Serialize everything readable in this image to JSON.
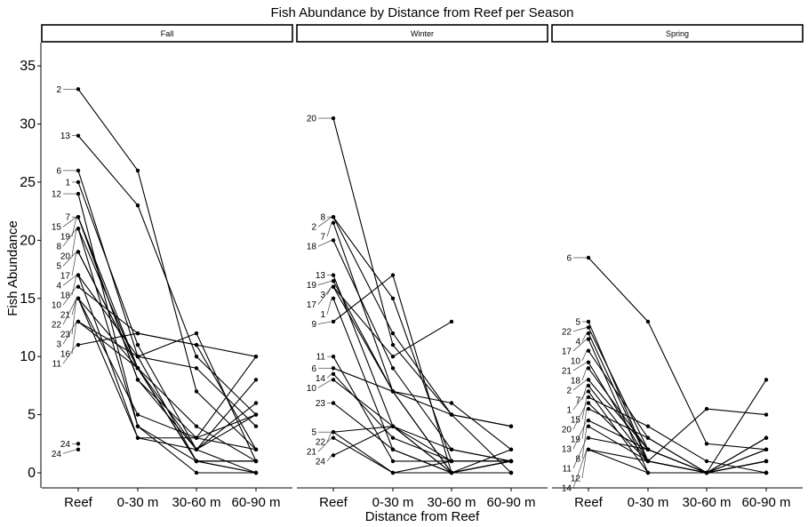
{
  "chart_data": {
    "type": "line",
    "title": "Fish Abundance by Distance from Reef per Season",
    "xlabel": "Distance from Reef",
    "ylabel": "Fish Abundance",
    "ylim": [
      -1.3,
      37
    ],
    "yticks": [
      0,
      5,
      10,
      15,
      20,
      25,
      30,
      35
    ],
    "categories": [
      "Reef",
      "0-30 m",
      "30-60 m",
      "60-90 m"
    ],
    "grid": false,
    "panels": [
      {
        "name": "Fall",
        "series": [
          {
            "name": "1",
            "values": [
              25,
              11,
              2,
              0
            ]
          },
          {
            "name": "2",
            "values": [
              33,
              26,
              7,
              2
            ]
          },
          {
            "name": "3",
            "values": [
              13,
              9,
              1,
              1
            ]
          },
          {
            "name": "4",
            "values": [
              17,
              10,
              12,
              1
            ]
          },
          {
            "name": "5",
            "values": [
              19,
              9,
              1,
              0
            ]
          },
          {
            "name": "6",
            "values": [
              26,
              10,
              1,
              0
            ]
          },
          {
            "name": "7",
            "values": [
              22,
              8,
              2,
              5
            ]
          },
          {
            "name": "8",
            "values": [
              21,
              4,
              0,
              0
            ]
          },
          {
            "name": "10",
            "values": [
              16,
              12,
              11,
              2
            ]
          },
          {
            "name": "11",
            "values": [
              11,
              12,
              11,
              10
            ]
          },
          {
            "name": "12",
            "values": [
              24,
              4,
              1,
              1
            ]
          },
          {
            "name": "13",
            "values": [
              29,
              23,
              10,
              5
            ]
          },
          {
            "name": "15",
            "values": [
              22,
              9,
              2,
              8
            ]
          },
          {
            "name": "16",
            "values": [
              13,
              10,
              9,
              4
            ]
          },
          {
            "name": "17",
            "values": [
              19,
              9,
              4,
              1
            ]
          },
          {
            "name": "18",
            "values": [
              17,
              3,
              2,
              6
            ]
          },
          {
            "name": "19",
            "values": [
              22,
              8,
              3,
              2
            ]
          },
          {
            "name": "20",
            "values": [
              21,
              9,
              1,
              1
            ]
          },
          {
            "name": "21",
            "values": [
              15,
              5,
              3,
              10
            ]
          },
          {
            "name": "22",
            "values": [
              15,
              3,
              3,
              5
            ]
          },
          {
            "name": "23",
            "values": [
              15,
              9,
              1,
              1
            ]
          },
          {
            "name": "24",
            "values": [
              2.5,
              null,
              null,
              null
            ]
          },
          {
            "name": "24",
            "values": [
              2,
              null,
              null,
              null
            ]
          }
        ]
      },
      {
        "name": "Winter",
        "series": [
          {
            "name": "20",
            "values": [
              30.5,
              11,
              5,
              0
            ]
          },
          {
            "name": "8",
            "values": [
              22,
              15,
              1,
              1
            ]
          },
          {
            "name": "2",
            "values": [
              22,
              12,
              5,
              4
            ]
          },
          {
            "name": "7",
            "values": [
              21.5,
              7,
              6,
              2
            ]
          },
          {
            "name": "18",
            "values": [
              20,
              9,
              2,
              1
            ]
          },
          {
            "name": "13",
            "values": [
              17,
              4,
              0,
              1
            ]
          },
          {
            "name": "19",
            "values": [
              16.5,
              7,
              0,
              0
            ]
          },
          {
            "name": "3",
            "values": [
              16,
              7,
              0,
              1
            ]
          },
          {
            "name": "1",
            "values": [
              15,
              2,
              0,
              1
            ]
          },
          {
            "name": "9",
            "values": [
              13,
              17,
              0,
              0
            ]
          },
          {
            "name": "11",
            "values": [
              10,
              1,
              1,
              1
            ]
          },
          {
            "name": "6",
            "values": [
              9,
              7,
              5,
              4
            ]
          },
          {
            "name": "14",
            "values": [
              8.5,
              3,
              1,
              1
            ]
          },
          {
            "name": "10",
            "values": [
              8,
              4,
              1,
              1
            ]
          },
          {
            "name": "23",
            "values": [
              6,
              2,
              0,
              1
            ]
          },
          {
            "name": "5",
            "values": [
              3.5,
              4,
              2,
              1
            ]
          },
          {
            "name": "22",
            "values": [
              3.5,
              0,
              0,
              2
            ]
          },
          {
            "name": "21",
            "values": [
              3,
              0,
              1,
              1
            ]
          },
          {
            "name": "24",
            "values": [
              1.5,
              4,
              0,
              0
            ]
          },
          {
            "name": "17",
            "values": [
              16,
              10,
              13,
              null
            ]
          }
        ]
      },
      {
        "name": "Spring",
        "series": [
          {
            "name": "6",
            "values": [
              18.5,
              13,
              2.5,
              2
            ]
          },
          {
            "name": "5",
            "values": [
              13,
              1,
              0,
              0
            ]
          },
          {
            "name": "22",
            "values": [
              12.5,
              2,
              0,
              1
            ]
          },
          {
            "name": "4",
            "values": [
              12,
              1,
              5.5,
              5
            ]
          },
          {
            "name": "17",
            "values": [
              11.5,
              0,
              0,
              1
            ]
          },
          {
            "name": "10",
            "values": [
              10.5,
              3,
              0,
              3
            ]
          },
          {
            "name": "21",
            "values": [
              9.5,
              1,
              0,
              0
            ]
          },
          {
            "name": "18",
            "values": [
              9,
              2,
              0,
              0
            ]
          },
          {
            "name": "2",
            "values": [
              8,
              2,
              0,
              8
            ]
          },
          {
            "name": "7",
            "values": [
              7.5,
              1,
              0,
              1
            ]
          },
          {
            "name": "1",
            "values": [
              7,
              0,
              0,
              2
            ]
          },
          {
            "name": "15",
            "values": [
              6.5,
              4,
              1,
              0
            ]
          },
          {
            "name": "20",
            "values": [
              6,
              1,
              0,
              0
            ]
          },
          {
            "name": "19",
            "values": [
              5.5,
              3,
              0,
              0
            ]
          },
          {
            "name": "13",
            "values": [
              4.5,
              2,
              0,
              3
            ]
          },
          {
            "name": "8",
            "values": [
              4,
              1,
              0,
              1
            ]
          },
          {
            "name": "11",
            "values": [
              3,
              2,
              0,
              2
            ]
          },
          {
            "name": "12",
            "values": [
              2,
              1,
              0,
              1
            ]
          },
          {
            "name": "14",
            "values": [
              2,
              0,
              0,
              0
            ]
          }
        ]
      }
    ]
  }
}
